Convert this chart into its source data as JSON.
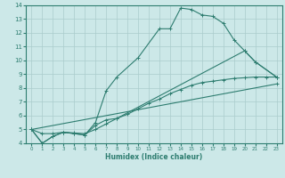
{
  "xlabel": "Humidex (Indice chaleur)",
  "bg_color": "#cce8e8",
  "line_color": "#2e7d70",
  "grid_color": "#aacccc",
  "xlim": [
    -0.5,
    23.5
  ],
  "ylim": [
    4,
    14
  ],
  "xticks": [
    0,
    1,
    2,
    3,
    4,
    5,
    6,
    7,
    8,
    9,
    10,
    11,
    12,
    13,
    14,
    15,
    16,
    17,
    18,
    19,
    20,
    21,
    22,
    23
  ],
  "yticks": [
    4,
    5,
    6,
    7,
    8,
    9,
    10,
    11,
    12,
    13,
    14
  ],
  "line1_x": [
    0,
    1,
    2,
    3,
    4,
    5,
    6,
    7,
    8,
    10,
    12,
    13,
    14,
    15,
    16,
    17,
    18,
    19,
    20,
    21,
    23
  ],
  "line1_y": [
    5,
    4,
    4.5,
    4.8,
    4.7,
    4.6,
    5.5,
    7.8,
    8.8,
    10.2,
    12.3,
    12.3,
    13.8,
    13.7,
    13.3,
    13.2,
    12.7,
    11.5,
    10.7,
    9.9,
    8.8
  ],
  "line2_x": [
    0,
    1,
    2,
    3,
    4,
    5,
    6,
    7,
    8,
    20,
    21,
    23
  ],
  "line2_y": [
    5,
    4,
    4.5,
    4.8,
    4.7,
    4.6,
    5.3,
    5.7,
    5.8,
    10.7,
    9.9,
    8.8
  ],
  "line3_x": [
    0,
    1,
    2,
    3,
    4,
    5,
    6,
    7,
    8,
    9,
    10,
    11,
    12,
    13,
    14,
    15,
    16,
    17,
    18,
    19,
    20,
    21,
    22,
    23
  ],
  "line3_y": [
    5,
    4.7,
    4.7,
    4.8,
    4.75,
    4.7,
    5.0,
    5.4,
    5.8,
    6.1,
    6.5,
    6.9,
    7.2,
    7.6,
    7.9,
    8.2,
    8.4,
    8.5,
    8.6,
    8.7,
    8.75,
    8.8,
    8.8,
    8.8
  ],
  "line4_x": [
    0,
    23
  ],
  "line4_y": [
    5,
    8.3
  ]
}
